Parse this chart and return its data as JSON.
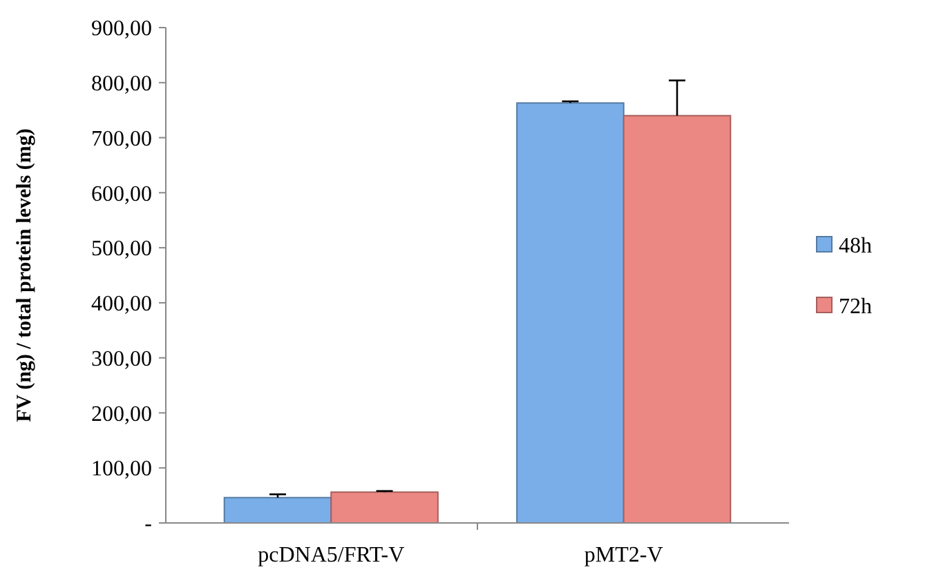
{
  "chart_data": {
    "type": "bar",
    "ylabel": "FV (ng) / total protein levels (mg)",
    "categories": [
      "pcDNA5/FRT-V",
      "pMT2-V"
    ],
    "series": [
      {
        "name": "48h",
        "color": "#7aaee8",
        "values": [
          46,
          763
        ],
        "errors": [
          [
            46,
            52
          ],
          [
            763,
            766
          ]
        ]
      },
      {
        "name": "72h",
        "color": "#ec8883",
        "values": [
          56,
          740
        ],
        "errors": [
          [
            56,
            58
          ],
          [
            740,
            804
          ]
        ]
      }
    ],
    "ylim": [
      0,
      900
    ],
    "yticks": [
      {
        "value": 0,
        "label": "-"
      },
      {
        "value": 100,
        "label": "100,00"
      },
      {
        "value": 200,
        "label": "200,00"
      },
      {
        "value": 300,
        "label": "300,00"
      },
      {
        "value": 400,
        "label": "400,00"
      },
      {
        "value": 500,
        "label": "500,00"
      },
      {
        "value": 600,
        "label": "600,00"
      },
      {
        "value": 700,
        "label": "700,00"
      },
      {
        "value": 800,
        "label": "800,00"
      },
      {
        "value": 900,
        "label": "900,00"
      }
    ],
    "legend": "right",
    "grid": false
  }
}
